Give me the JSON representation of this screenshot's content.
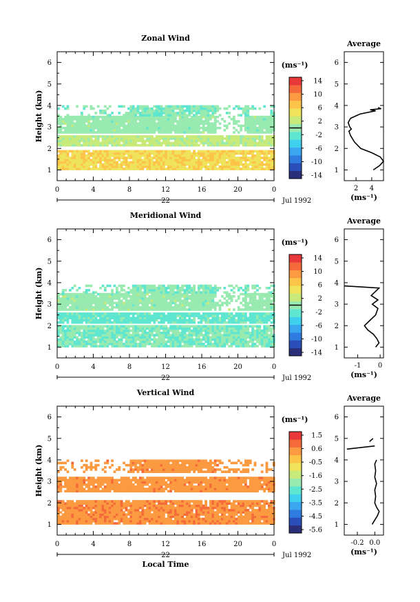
{
  "figure": {
    "xlabel_bottom": "Local Time",
    "date_label": "Jul 1992",
    "day_label": "22",
    "avg_title": "Average",
    "unit_label": "(ms⁻¹)",
    "ylabel": "Height (km)"
  },
  "chart_data": [
    {
      "type": "heatmap",
      "title": "Zonal Wind",
      "xlabel": "",
      "ylabel": "Height (km)",
      "xlim": [
        0,
        24
      ],
      "ylim": [
        0.5,
        6.5
      ],
      "xticks": [
        "0",
        "4",
        "8",
        "12",
        "16",
        "20",
        "0"
      ],
      "yticks": [
        "1",
        "2",
        "3",
        "4",
        "5",
        "6"
      ],
      "colorbar": {
        "unit": "(ms⁻¹)",
        "range": [
          -16,
          16
        ],
        "ticks": [
          "14",
          "10",
          "6",
          "2",
          "-2",
          "-6",
          "-10",
          "-14"
        ],
        "zero_line": 0
      },
      "coverage": {
        "layers_km": [
          [
            1.0,
            1.9
          ],
          [
            2.1,
            2.6
          ],
          [
            2.7,
            3.5
          ],
          [
            3.5,
            4.0
          ]
        ],
        "time_hours": [
          0,
          24
        ]
      },
      "values_by_layer": [
        {
          "layer_km": [
            1.0,
            1.9
          ],
          "speed_ms": 6
        },
        {
          "layer_km": [
            2.1,
            2.6
          ],
          "speed_ms": 2
        },
        {
          "layer_km": [
            2.7,
            3.5
          ],
          "speed_ms": 0
        },
        {
          "layer_km": [
            3.5,
            4.0
          ],
          "speed_ms": -1
        }
      ],
      "average_profile": {
        "xlim": [
          0.5,
          5.5
        ],
        "xticks": [
          "2",
          "4"
        ],
        "xlabel": "(ms⁻¹)",
        "height_km": [
          1.0,
          1.2,
          1.4,
          1.6,
          1.8,
          2.0,
          2.3,
          2.6,
          2.8,
          2.9,
          3.0,
          3.2,
          3.4,
          3.6,
          3.75,
          3.8,
          3.85,
          3.9
        ],
        "speed_ms": [
          4.2,
          5.0,
          5.5,
          5.1,
          4.0,
          2.6,
          1.8,
          1.3,
          1.1,
          1.4,
          1.2,
          1.0,
          1.3,
          2.5,
          4.5,
          3.8,
          5.2,
          4.8
        ]
      }
    },
    {
      "type": "heatmap",
      "title": "Meridional Wind",
      "xlabel": "",
      "ylabel": "Height (km)",
      "xlim": [
        0,
        24
      ],
      "ylim": [
        0.5,
        6.5
      ],
      "xticks": [
        "0",
        "4",
        "8",
        "12",
        "16",
        "20",
        "0"
      ],
      "yticks": [
        "1",
        "2",
        "3",
        "4",
        "5",
        "6"
      ],
      "colorbar": {
        "unit": "(ms⁻¹)",
        "range": [
          -16,
          16
        ],
        "ticks": [
          "14",
          "10",
          "6",
          "2",
          "-2",
          "-6",
          "-10",
          "-14"
        ],
        "zero_line": 0
      },
      "coverage": {
        "layers_km": [
          [
            1.0,
            2.0
          ],
          [
            2.1,
            2.6
          ],
          [
            2.7,
            3.5
          ],
          [
            3.5,
            3.9
          ]
        ],
        "time_hours": [
          0,
          24
        ]
      },
      "values_by_layer": [
        {
          "layer_km": [
            1.0,
            2.0
          ],
          "speed_ms": -1
        },
        {
          "layer_km": [
            2.1,
            2.6
          ],
          "speed_ms": -2
        },
        {
          "layer_km": [
            2.7,
            3.5
          ],
          "speed_ms": 0
        },
        {
          "layer_km": [
            3.5,
            3.9
          ],
          "speed_ms": -1
        }
      ],
      "average_profile": {
        "xlim": [
          -1.6,
          0.15
        ],
        "xticks": [
          "-1",
          "0"
        ],
        "xlabel": "(ms⁻¹)",
        "height_km": [
          1.0,
          1.2,
          1.4,
          1.6,
          1.8,
          2.0,
          2.2,
          2.5,
          2.8,
          3.0,
          3.2,
          3.4,
          3.6,
          3.75,
          3.85
        ],
        "speed_ms": [
          -0.2,
          -0.05,
          -0.15,
          -0.3,
          -0.55,
          -0.7,
          -0.5,
          -0.2,
          -0.1,
          -0.35,
          -0.1,
          -0.4,
          -0.2,
          -0.05,
          -1.6
        ]
      }
    },
    {
      "type": "heatmap",
      "title": "Vertical Wind",
      "xlabel": "Local Time",
      "ylabel": "Height (km)",
      "xlim": [
        0,
        24
      ],
      "ylim": [
        0.5,
        6.5
      ],
      "xticks": [
        "0",
        "4",
        "8",
        "12",
        "16",
        "20",
        "0"
      ],
      "yticks": [
        "1",
        "2",
        "3",
        "4",
        "5",
        "6"
      ],
      "colorbar": {
        "unit": "(ms⁻¹)",
        "range": [
          -6.0,
          2.0
        ],
        "ticks": [
          "1.5",
          "0.6",
          "-0.5",
          "-1.6",
          "-2.5",
          "-3.5",
          "-4.5",
          "-5.6"
        ],
        "zero_line": null
      },
      "coverage": {
        "layers_km": [
          [
            1.0,
            2.1
          ],
          [
            2.5,
            3.2
          ],
          [
            3.4,
            4.0
          ]
        ],
        "time_hours": [
          0,
          24
        ]
      },
      "values_by_layer": [
        {
          "layer_km": [
            1.0,
            2.1
          ],
          "speed_ms": 0.6
        },
        {
          "layer_km": [
            2.5,
            3.2
          ],
          "speed_ms": 0.5
        },
        {
          "layer_km": [
            3.4,
            4.0
          ],
          "speed_ms": 0.5
        }
      ],
      "average_profile": {
        "xlim": [
          -0.35,
          0.1
        ],
        "xticks": [
          "-0.2",
          "0.0"
        ],
        "xlabel": "(ms⁻¹)",
        "height_km": [
          1.0,
          1.2,
          1.4,
          1.6,
          1.8,
          2.0,
          2.3,
          2.6,
          2.9,
          3.2,
          3.5,
          3.8,
          4.0
        ],
        "speed_ms": [
          -0.03,
          0.0,
          0.03,
          0.05,
          0.02,
          0.0,
          0.01,
          0.0,
          0.02,
          0.0,
          0.01,
          0.0,
          0.02
        ],
        "upper_segment": {
          "height_km": [
            4.5,
            4.65
          ],
          "speed_ms": [
            -0.32,
            0.0
          ]
        },
        "top_segment": {
          "height_km": [
            4.85,
            5.0
          ],
          "speed_ms": [
            -0.06,
            -0.02
          ]
        }
      }
    }
  ]
}
